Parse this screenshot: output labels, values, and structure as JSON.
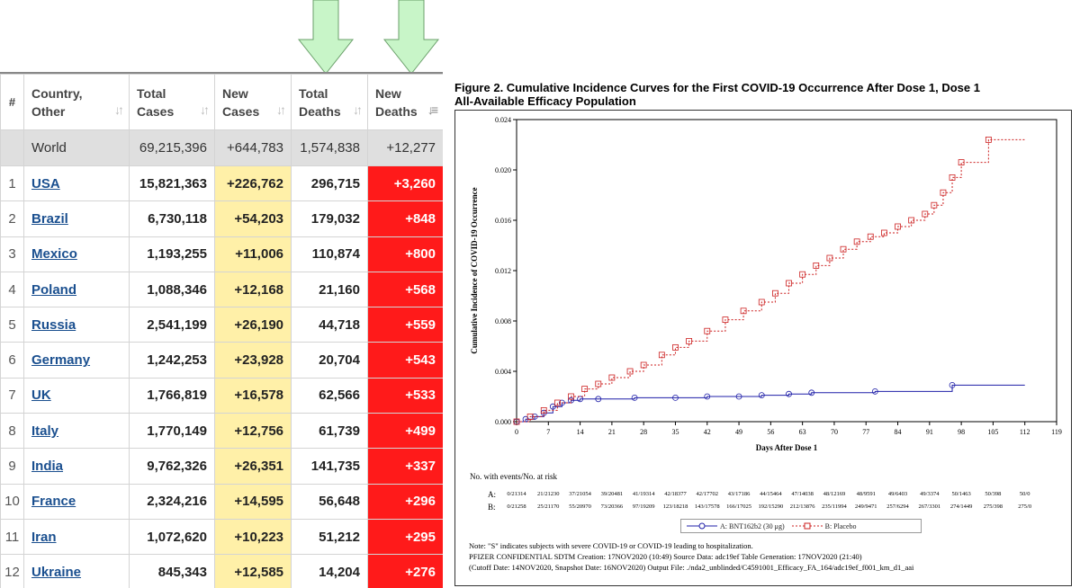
{
  "table": {
    "headers": [
      {
        "key": "idx",
        "label": "#"
      },
      {
        "key": "country",
        "label_line1": "Country,",
        "label_line2": "Other"
      },
      {
        "key": "total_cases",
        "label_line1": "Total",
        "label_line2": "Cases"
      },
      {
        "key": "new_cases",
        "label_line1": "New",
        "label_line2": "Cases"
      },
      {
        "key": "total_deaths",
        "label_line1": "Total",
        "label_line2": "Deaths"
      },
      {
        "key": "new_deaths",
        "label_line1": "New",
        "label_line2": "Deaths"
      }
    ],
    "world": {
      "name": "World",
      "total_cases": "69,215,396",
      "new_cases": "+644,783",
      "total_deaths": "1,574,838",
      "new_deaths": "+12,277"
    },
    "rows": [
      {
        "idx": "1",
        "country": "USA",
        "total_cases": "15,821,363",
        "new_cases": "+226,762",
        "total_deaths": "296,715",
        "new_deaths": "+3,260"
      },
      {
        "idx": "2",
        "country": "Brazil",
        "total_cases": "6,730,118",
        "new_cases": "+54,203",
        "total_deaths": "179,032",
        "new_deaths": "+848"
      },
      {
        "idx": "3",
        "country": "Mexico",
        "total_cases": "1,193,255",
        "new_cases": "+11,006",
        "total_deaths": "110,874",
        "new_deaths": "+800"
      },
      {
        "idx": "4",
        "country": "Poland",
        "total_cases": "1,088,346",
        "new_cases": "+12,168",
        "total_deaths": "21,160",
        "new_deaths": "+568"
      },
      {
        "idx": "5",
        "country": "Russia",
        "total_cases": "2,541,199",
        "new_cases": "+26,190",
        "total_deaths": "44,718",
        "new_deaths": "+559"
      },
      {
        "idx": "6",
        "country": "Germany",
        "total_cases": "1,242,253",
        "new_cases": "+23,928",
        "total_deaths": "20,704",
        "new_deaths": "+543"
      },
      {
        "idx": "7",
        "country": "UK",
        "total_cases": "1,766,819",
        "new_cases": "+16,578",
        "total_deaths": "62,566",
        "new_deaths": "+533"
      },
      {
        "idx": "8",
        "country": "Italy",
        "total_cases": "1,770,149",
        "new_cases": "+12,756",
        "total_deaths": "61,739",
        "new_deaths": "+499"
      },
      {
        "idx": "9",
        "country": "India",
        "total_cases": "9,762,326",
        "new_cases": "+26,351",
        "total_deaths": "141,735",
        "new_deaths": "+337"
      },
      {
        "idx": "10",
        "country": "France",
        "total_cases": "2,324,216",
        "new_cases": "+14,595",
        "total_deaths": "56,648",
        "new_deaths": "+296"
      },
      {
        "idx": "11",
        "country": "Iran",
        "total_cases": "1,072,620",
        "new_cases": "+10,223",
        "total_deaths": "51,212",
        "new_deaths": "+295"
      },
      {
        "idx": "12",
        "country": "Ukraine",
        "total_cases": "845,343",
        "new_cases": "+12,585",
        "total_deaths": "14,204",
        "new_deaths": "+276"
      }
    ],
    "colors": {
      "new_cases_bg": "#fff0a8",
      "new_deaths_bg": "#ff1a1a",
      "link": "#1a4f8f",
      "world_bg": "#dfdfdf",
      "arrow": "#c8f5c8"
    }
  },
  "figure": {
    "title_line1": "Figure 2. Cumulative Incidence Curves for the First COVID-19 Occurrence After Dose 1, Dose 1",
    "title_line2": "All-Available Efficacy Population",
    "risk_heading": "No. with events/No. at risk",
    "risk_rows": [
      {
        "label": "A:",
        "cells": [
          "0/21314",
          "21/21230",
          "37/21054",
          "39/20481",
          "41/19314",
          "42/18377",
          "42/17702",
          "43/17186",
          "44/15464",
          "47/14038",
          "48/12169",
          "48/9591",
          "49/6403",
          "49/3374",
          "50/1463",
          "50/398",
          "50/0"
        ]
      },
      {
        "label": "B:",
        "cells": [
          "0/21258",
          "25/21170",
          "55/20970",
          "73/20366",
          "97/19209",
          "123/18218",
          "143/17578",
          "166/17025",
          "192/15290",
          "212/13876",
          "235/11994",
          "249/9471",
          "257/6294",
          "267/3301",
          "274/1449",
          "275/398",
          "275/0"
        ]
      }
    ],
    "legend": [
      {
        "label": "A: BNT162b2 (30 μg)",
        "color": "#1f1fa8",
        "marker": "circle",
        "dash": "solid"
      },
      {
        "label": "B: Placebo",
        "color": "#cc1f1f",
        "marker": "square",
        "dash": "dashed"
      }
    ],
    "notes": [
      "Note: \"S\" indicates subjects with severe COVID-19 or COVID-19 leading to hospitalization.",
      "PFIZER CONFIDENTIAL  SDTM Creation: 17NOV2020 (10:49)  Source Data: adc19ef  Table Generation: 17NOV2020 (21:40)",
      "(Cutoff Date: 14NOV2020, Snapshot Date: 16NOV2020) Output File: ./nda2_unblinded/C4591001_Efficacy_FA_164/adc19ef_f001_km_d1_aai"
    ]
  },
  "chart_data": {
    "type": "line",
    "xlabel": "Days After Dose 1",
    "ylabel": "Cumulative Incidence of COVID-19 Occurrence",
    "xlim": [
      0,
      119
    ],
    "ylim": [
      0,
      0.024
    ],
    "x_ticks": [
      "0",
      "7",
      "14",
      "21",
      "28",
      "35",
      "42",
      "49",
      "56",
      "63",
      "70",
      "77",
      "84",
      "91",
      "98",
      "105",
      "112",
      "119"
    ],
    "y_ticks": [
      "0.000",
      "0.004",
      "0.008",
      "0.012",
      "0.016",
      "0.020",
      "0.024"
    ],
    "series": [
      {
        "name": "A: BNT162b2 (30 μg)",
        "color": "#1f1fa8",
        "x": [
          0,
          2,
          4,
          6,
          8,
          10,
          12,
          14,
          18,
          26,
          35,
          42,
          49,
          54,
          60,
          65,
          79,
          96,
          112
        ],
        "y": [
          0,
          0.0002,
          0.0004,
          0.0007,
          0.0012,
          0.0015,
          0.0017,
          0.0018,
          0.0018,
          0.0019,
          0.0019,
          0.002,
          0.002,
          0.0021,
          0.0022,
          0.0023,
          0.0024,
          0.0029,
          0.0029
        ]
      },
      {
        "name": "B: Placebo",
        "color": "#cc1f1f",
        "x": [
          0,
          3,
          6,
          9,
          12,
          15,
          18,
          21,
          25,
          28,
          32,
          35,
          38,
          42,
          46,
          50,
          54,
          57,
          60,
          63,
          66,
          69,
          72,
          75,
          78,
          81,
          84,
          87,
          90,
          92,
          94,
          96,
          98,
          104,
          112
        ],
        "y": [
          0,
          0.0004,
          0.0009,
          0.0015,
          0.002,
          0.0026,
          0.003,
          0.0035,
          0.004,
          0.0045,
          0.0053,
          0.0059,
          0.0064,
          0.0072,
          0.0081,
          0.0088,
          0.0095,
          0.0102,
          0.011,
          0.0117,
          0.0124,
          0.013,
          0.0137,
          0.0143,
          0.0147,
          0.015,
          0.0155,
          0.016,
          0.0165,
          0.0172,
          0.0182,
          0.0194,
          0.0206,
          0.0224,
          0.0224
        ]
      }
    ]
  }
}
